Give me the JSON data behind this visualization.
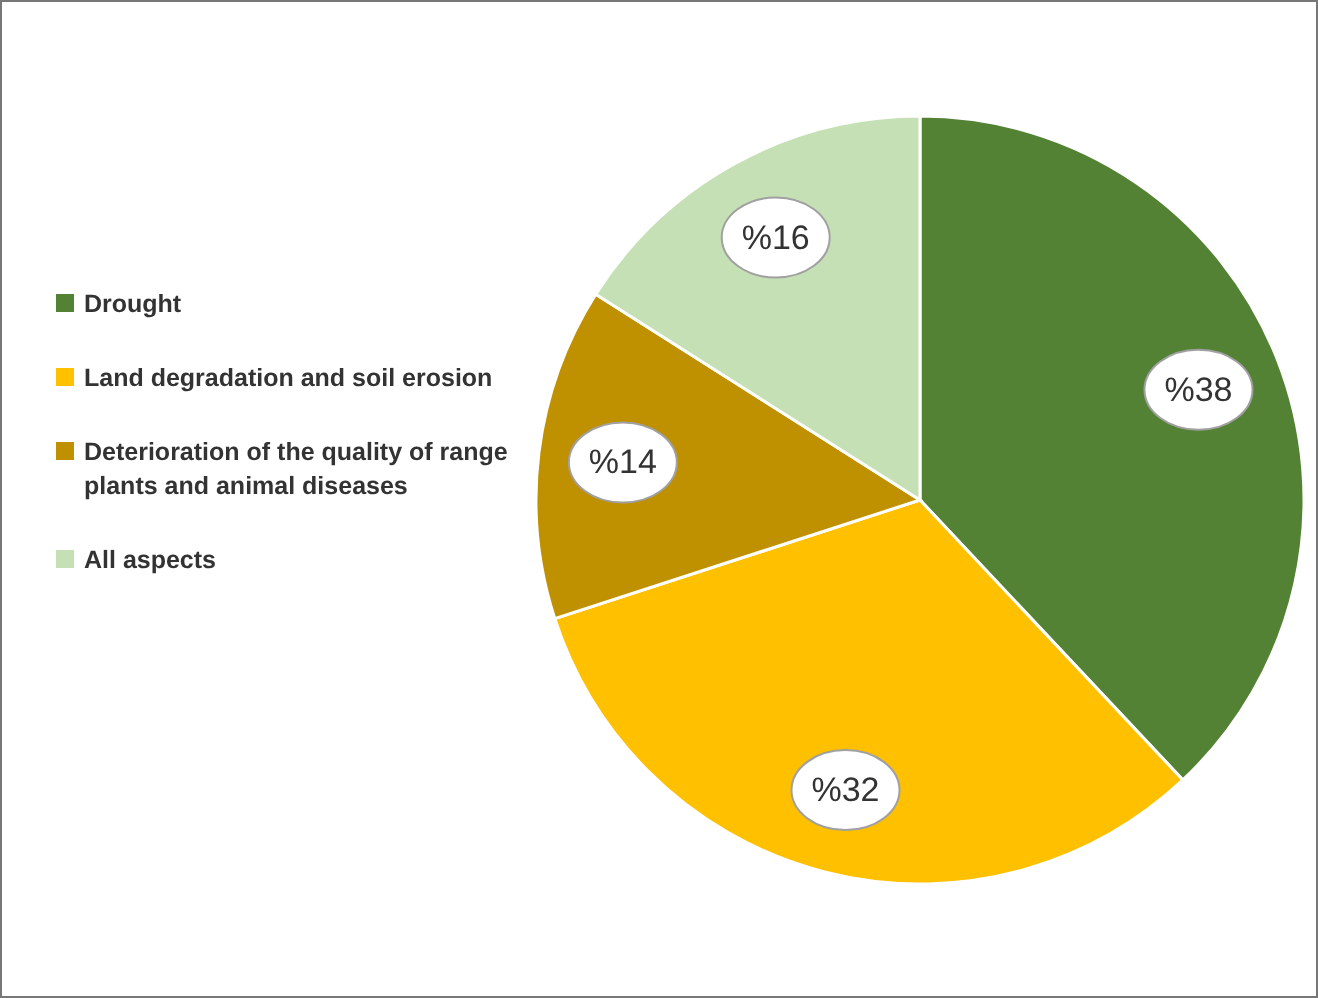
{
  "chart_data": {
    "type": "pie",
    "categories": [
      "Drought",
      "Land degradation and soil erosion",
      "Deterioration of the quality of range plants  and animal diseases",
      "All aspects"
    ],
    "values": [
      38,
      32,
      14,
      16
    ],
    "colors": [
      "#548235",
      "#ffc000",
      "#bf9000",
      "#c5e0b4"
    ],
    "value_labels": [
      "%38",
      "%32",
      "%14",
      "%16"
    ],
    "legend": "left"
  }
}
